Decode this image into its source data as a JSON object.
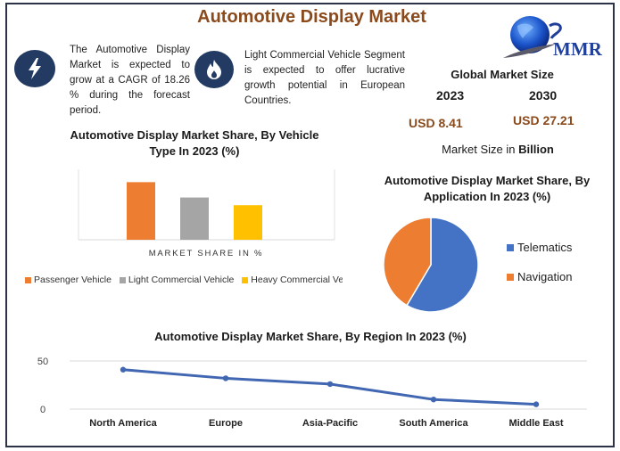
{
  "header": {
    "title": "Automotive Display Market"
  },
  "info_blocks": [
    {
      "icon": "lightning-bolt-icon",
      "text": "The Automotive Display Market is expected to grow at a CAGR of 18.26 % during the forecast period."
    },
    {
      "icon": "flame-icon",
      "text": "Light Commercial Vehicle Segment is expected to offer lucrative growth potential in European Countries."
    }
  ],
  "logo": {
    "text": "MMR",
    "icon": "globe-icon"
  },
  "market_size": {
    "title": "Global Market Size",
    "year_start": "2023",
    "year_end": "2030",
    "value_start": "USD 8.41",
    "value_end": "USD 27.21",
    "unit_prefix": "Market Size in ",
    "unit_bold": "Billion"
  },
  "colors": {
    "title_brown": "#8b4a1c",
    "frame": "#2c3347",
    "icon_bg": "#233a63",
    "orange": "#ed7d31",
    "gray": "#a5a5a5",
    "yellow": "#ffc000",
    "blue": "#4472c4",
    "line_blue": "#4267b2"
  },
  "chart_data": [
    {
      "id": "vehicle-type",
      "type": "bar",
      "title": "Automotive Display Market Share, By Vehicle Type In 2023 (%)",
      "title_line1": "Automotive Display Market Share, By Vehicle",
      "title_line2": "Type In 2023 (%)",
      "xlabel": "MARKET SHARE IN %",
      "ylabel": "",
      "categories": [
        "Passenger Vehicle",
        "Light Commercial Vehicle",
        "Heavy Commercial Vehicle"
      ],
      "legend_labels": [
        "Passenger Vehicle",
        "Light Commercial Vehicle",
        "Heavy Commercial Ve"
      ],
      "values": [
        45,
        33,
        27
      ],
      "colors": [
        "#ed7d31",
        "#a5a5a5",
        "#ffc000"
      ],
      "ylim": [
        0,
        55
      ],
      "grid": false,
      "legend": "bottom"
    },
    {
      "id": "application",
      "type": "pie",
      "title": "Automotive Display Market Share, By Application In 2023 (%)",
      "title_line1": "Automotive Display Market Share, By",
      "title_line2": "Application In 2023 (%)",
      "labels": [
        "Telematics",
        "Navigation"
      ],
      "values": [
        58.5,
        41.5
      ],
      "colors": [
        "#4472c4",
        "#ed7d31"
      ],
      "legend": "right"
    },
    {
      "id": "region",
      "type": "line",
      "title": "Automotive Display Market Share, By Region In 2023 (%)",
      "categories": [
        "North America",
        "Europe",
        "Asia-Pacific",
        "South America",
        "Middle East"
      ],
      "values": [
        41,
        32,
        26,
        10,
        5
      ],
      "yticks": [
        "0",
        "50"
      ],
      "ylim": [
        0,
        50
      ],
      "grid": true,
      "color": "#4267b2",
      "legend": "none"
    }
  ]
}
